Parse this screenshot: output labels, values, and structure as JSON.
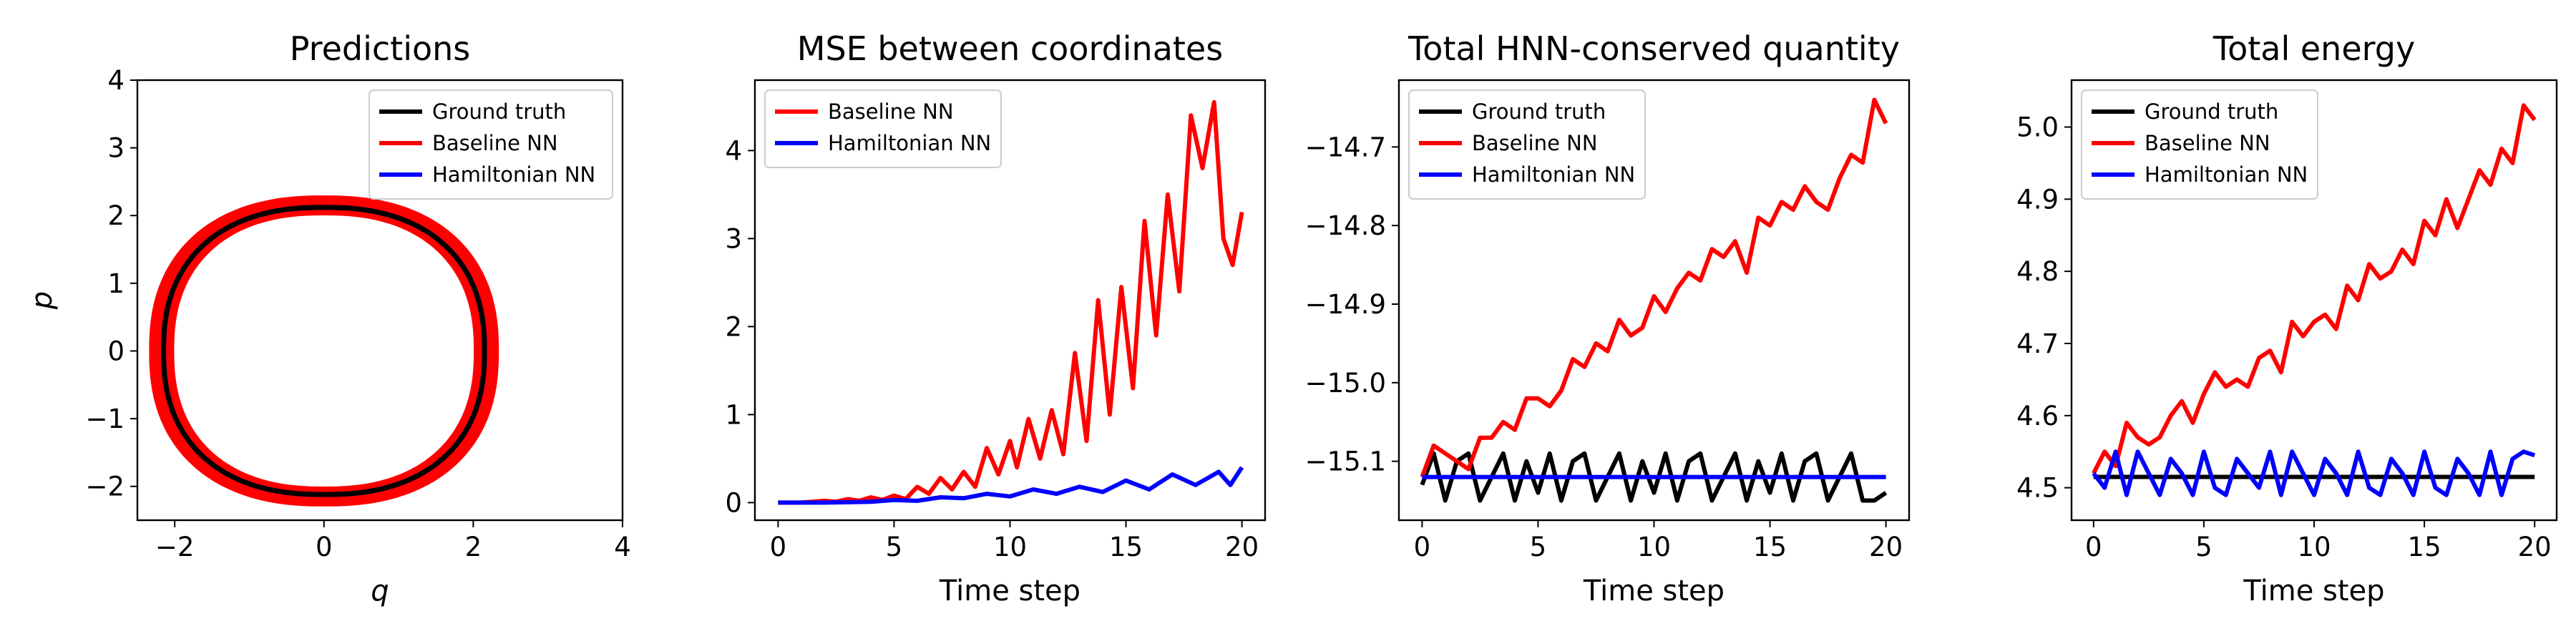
{
  "chart_data": [
    {
      "type": "line",
      "title": "Predictions",
      "xlabel": "q",
      "ylabel": "p",
      "xlim": [
        -2.5,
        4
      ],
      "ylim": [
        -2.5,
        4
      ],
      "xticks": [
        -2,
        0,
        2,
        4
      ],
      "yticks": [
        -2,
        -1,
        0,
        1,
        2,
        3,
        4
      ],
      "xtick_labels": [
        "−2",
        "0",
        "2",
        "4"
      ],
      "ytick_labels": [
        "−2",
        "−1",
        "0",
        "1",
        "2",
        "3",
        "4"
      ],
      "grid": false,
      "legend": {
        "position": "top-right",
        "entries": [
          {
            "label": "Ground truth",
            "color": "#000000"
          },
          {
            "label": "Baseline NN",
            "color": "#ff0000"
          },
          {
            "label": "Hamiltonian NN",
            "color": "#0000ff"
          }
        ]
      },
      "series": [
        {
          "name": "Baseline NN",
          "color": "#ff0000",
          "shape": "closed_orbit",
          "q_extent": [
            -2.3,
            2.3
          ],
          "p_extent": [
            -2.25,
            2.25
          ],
          "inner_q_extent": [
            -2.05,
            2.05
          ],
          "inner_p_extent": [
            -2.05,
            2.05
          ]
        },
        {
          "name": "Hamiltonian NN",
          "color": "#0000ff",
          "shape": "closed_orbit",
          "q_extent": [
            -2.15,
            2.15
          ],
          "p_extent": [
            -2.12,
            2.12
          ]
        },
        {
          "name": "Ground truth",
          "color": "#000000",
          "shape": "closed_orbit",
          "q_extent": [
            -2.15,
            2.15
          ],
          "p_extent": [
            -2.12,
            2.12
          ]
        }
      ]
    },
    {
      "type": "line",
      "title": "MSE between coordinates",
      "xlabel": "Time step",
      "ylabel": "",
      "xlim": [
        -1,
        21
      ],
      "ylim": [
        -0.2,
        4.8
      ],
      "xticks": [
        0,
        5,
        10,
        15,
        20
      ],
      "yticks": [
        0,
        1,
        2,
        3,
        4
      ],
      "xtick_labels": [
        "0",
        "5",
        "10",
        "15",
        "20"
      ],
      "ytick_labels": [
        "0",
        "1",
        "2",
        "3",
        "4"
      ],
      "grid": false,
      "legend": {
        "position": "top-left",
        "entries": [
          {
            "label": "Baseline NN",
            "color": "#ff0000"
          },
          {
            "label": "Hamiltonian NN",
            "color": "#0000ff"
          }
        ]
      },
      "series": [
        {
          "name": "Baseline NN",
          "color": "#ff0000",
          "x": [
            0,
            1,
            2,
            2.5,
            3,
            3.5,
            4,
            4.5,
            5,
            5.5,
            6,
            6.5,
            7,
            7.5,
            8,
            8.5,
            9,
            9.5,
            10,
            10.3,
            10.8,
            11.3,
            11.8,
            12.3,
            12.8,
            13.3,
            13.8,
            14.3,
            14.8,
            15.3,
            15.8,
            16.3,
            16.8,
            17.3,
            17.8,
            18.3,
            18.8,
            19.2,
            19.6,
            20
          ],
          "y": [
            0,
            0,
            0.02,
            0.01,
            0.04,
            0.02,
            0.06,
            0.03,
            0.08,
            0.04,
            0.18,
            0.1,
            0.28,
            0.15,
            0.35,
            0.18,
            0.62,
            0.32,
            0.7,
            0.4,
            0.95,
            0.5,
            1.05,
            0.55,
            1.7,
            0.7,
            2.3,
            1.0,
            2.45,
            1.3,
            3.2,
            1.9,
            3.5,
            2.4,
            4.4,
            3.8,
            4.55,
            3.0,
            2.7,
            3.3
          ]
        },
        {
          "name": "Hamiltonian NN",
          "color": "#0000ff",
          "x": [
            0,
            2,
            4,
            5,
            6,
            7,
            8,
            9,
            10,
            11,
            12,
            13,
            14,
            15,
            16,
            17,
            18,
            19,
            19.5,
            20
          ],
          "y": [
            0,
            0,
            0.01,
            0.03,
            0.02,
            0.06,
            0.05,
            0.1,
            0.07,
            0.15,
            0.1,
            0.18,
            0.12,
            0.25,
            0.15,
            0.32,
            0.2,
            0.35,
            0.2,
            0.4
          ]
        }
      ]
    },
    {
      "type": "line",
      "title": "Total HNN-conserved quantity",
      "xlabel": "Time step",
      "ylabel": "",
      "xlim": [
        -1,
        21
      ],
      "ylim": [
        -15.175,
        -14.615
      ],
      "xticks": [
        0,
        5,
        10,
        15,
        20
      ],
      "yticks": [
        -15.1,
        -15.0,
        -14.9,
        -14.8,
        -14.7
      ],
      "xtick_labels": [
        "0",
        "5",
        "10",
        "15",
        "20"
      ],
      "ytick_labels": [
        "−15.1",
        "−15.0",
        "−14.9",
        "−14.8",
        "−14.7"
      ],
      "grid": false,
      "legend": {
        "position": "top-left",
        "entries": [
          {
            "label": "Ground truth",
            "color": "#000000"
          },
          {
            "label": "Baseline NN",
            "color": "#ff0000"
          },
          {
            "label": "Hamiltonian NN",
            "color": "#0000ff"
          }
        ]
      },
      "series": [
        {
          "name": "Ground truth",
          "color": "#000000",
          "x": [
            0,
            0.5,
            1,
            1.5,
            2,
            2.5,
            3,
            3.5,
            4,
            4.5,
            5,
            5.5,
            6,
            6.5,
            7,
            7.5,
            8,
            8.5,
            9,
            9.5,
            10,
            10.5,
            11,
            11.5,
            12,
            12.5,
            13,
            13.5,
            14,
            14.5,
            15,
            15.5,
            16,
            16.5,
            17,
            17.5,
            18,
            18.5,
            19,
            19.5,
            20
          ],
          "y": [
            -15.13,
            -15.09,
            -15.15,
            -15.1,
            -15.09,
            -15.15,
            -15.12,
            -15.09,
            -15.15,
            -15.1,
            -15.14,
            -15.09,
            -15.15,
            -15.1,
            -15.09,
            -15.15,
            -15.12,
            -15.09,
            -15.15,
            -15.1,
            -15.14,
            -15.09,
            -15.15,
            -15.1,
            -15.09,
            -15.15,
            -15.12,
            -15.09,
            -15.15,
            -15.1,
            -15.14,
            -15.09,
            -15.15,
            -15.1,
            -15.09,
            -15.15,
            -15.12,
            -15.09,
            -15.15,
            -15.15,
            -15.14
          ]
        },
        {
          "name": "Baseline NN",
          "color": "#ff0000",
          "x": [
            0,
            0.5,
            1,
            1.5,
            2,
            2.5,
            3,
            3.5,
            4,
            4.5,
            5,
            5.5,
            6,
            6.5,
            7,
            7.5,
            8,
            8.5,
            9,
            9.5,
            10,
            10.5,
            11,
            11.5,
            12,
            12.5,
            13,
            13.5,
            14,
            14.5,
            15,
            15.5,
            16,
            16.5,
            17,
            17.5,
            18,
            18.5,
            19,
            19.5,
            20
          ],
          "y": [
            -15.12,
            -15.08,
            -15.09,
            -15.1,
            -15.11,
            -15.07,
            -15.07,
            -15.05,
            -15.06,
            -15.02,
            -15.02,
            -15.03,
            -15.01,
            -14.97,
            -14.98,
            -14.95,
            -14.96,
            -14.92,
            -14.94,
            -14.93,
            -14.89,
            -14.91,
            -14.88,
            -14.86,
            -14.87,
            -14.83,
            -14.84,
            -14.82,
            -14.86,
            -14.79,
            -14.8,
            -14.77,
            -14.78,
            -14.75,
            -14.77,
            -14.78,
            -14.74,
            -14.71,
            -14.72,
            -14.64,
            -14.67
          ]
        },
        {
          "name": "Hamiltonian NN",
          "color": "#0000ff",
          "x": [
            0,
            20
          ],
          "y": [
            -15.12,
            -15.12
          ]
        }
      ]
    },
    {
      "type": "line",
      "title": "Total energy",
      "xlabel": "Time step",
      "ylabel": "",
      "xlim": [
        -1,
        21
      ],
      "ylim": [
        4.455,
        5.065
      ],
      "xticks": [
        0,
        5,
        10,
        15,
        20
      ],
      "yticks": [
        4.5,
        4.6,
        4.7,
        4.8,
        4.9,
        5.0
      ],
      "xtick_labels": [
        "0",
        "5",
        "10",
        "15",
        "20"
      ],
      "ytick_labels": [
        "4.5",
        "4.6",
        "4.7",
        "4.8",
        "4.9",
        "5.0"
      ],
      "grid": false,
      "legend": {
        "position": "top-left",
        "entries": [
          {
            "label": "Ground truth",
            "color": "#000000"
          },
          {
            "label": "Baseline NN",
            "color": "#ff0000"
          },
          {
            "label": "Hamiltonian NN",
            "color": "#0000ff"
          }
        ]
      },
      "series": [
        {
          "name": "Ground truth",
          "color": "#000000",
          "x": [
            0,
            20
          ],
          "y": [
            4.515,
            4.515
          ]
        },
        {
          "name": "Baseline NN",
          "color": "#ff0000",
          "x": [
            0,
            0.5,
            1,
            1.5,
            2,
            2.5,
            3,
            3.5,
            4,
            4.5,
            5,
            5.5,
            6,
            6.5,
            7,
            7.5,
            8,
            8.5,
            9,
            9.5,
            10,
            10.5,
            11,
            11.5,
            12,
            12.5,
            13,
            13.5,
            14,
            14.5,
            15,
            15.5,
            16,
            16.5,
            17,
            17.5,
            18,
            18.5,
            19,
            19.5,
            20
          ],
          "y": [
            4.52,
            4.55,
            4.53,
            4.59,
            4.57,
            4.56,
            4.57,
            4.6,
            4.62,
            4.59,
            4.63,
            4.66,
            4.64,
            4.65,
            4.64,
            4.68,
            4.69,
            4.66,
            4.73,
            4.71,
            4.73,
            4.74,
            4.72,
            4.78,
            4.76,
            4.81,
            4.79,
            4.8,
            4.83,
            4.81,
            4.87,
            4.85,
            4.9,
            4.86,
            4.9,
            4.94,
            4.92,
            4.97,
            4.95,
            5.03,
            5.01
          ]
        },
        {
          "name": "Hamiltonian NN",
          "color": "#0000ff",
          "x": [
            0,
            0.5,
            1,
            1.5,
            2,
            2.5,
            3,
            3.5,
            4,
            4.5,
            5,
            5.5,
            6,
            6.5,
            7,
            7.5,
            8,
            8.5,
            9,
            9.5,
            10,
            10.5,
            11,
            11.5,
            12,
            12.5,
            13,
            13.5,
            14,
            14.5,
            15,
            15.5,
            16,
            16.5,
            17,
            17.5,
            18,
            18.5,
            19,
            19.5,
            20
          ],
          "y": [
            4.52,
            4.5,
            4.55,
            4.49,
            4.55,
            4.52,
            4.49,
            4.54,
            4.52,
            4.49,
            4.55,
            4.5,
            4.49,
            4.54,
            4.52,
            4.5,
            4.55,
            4.49,
            4.55,
            4.52,
            4.49,
            4.54,
            4.52,
            4.49,
            4.55,
            4.5,
            4.49,
            4.54,
            4.52,
            4.49,
            4.55,
            4.5,
            4.49,
            4.54,
            4.52,
            4.49,
            4.55,
            4.49,
            4.54,
            4.55,
            4.545
          ]
        }
      ]
    }
  ]
}
